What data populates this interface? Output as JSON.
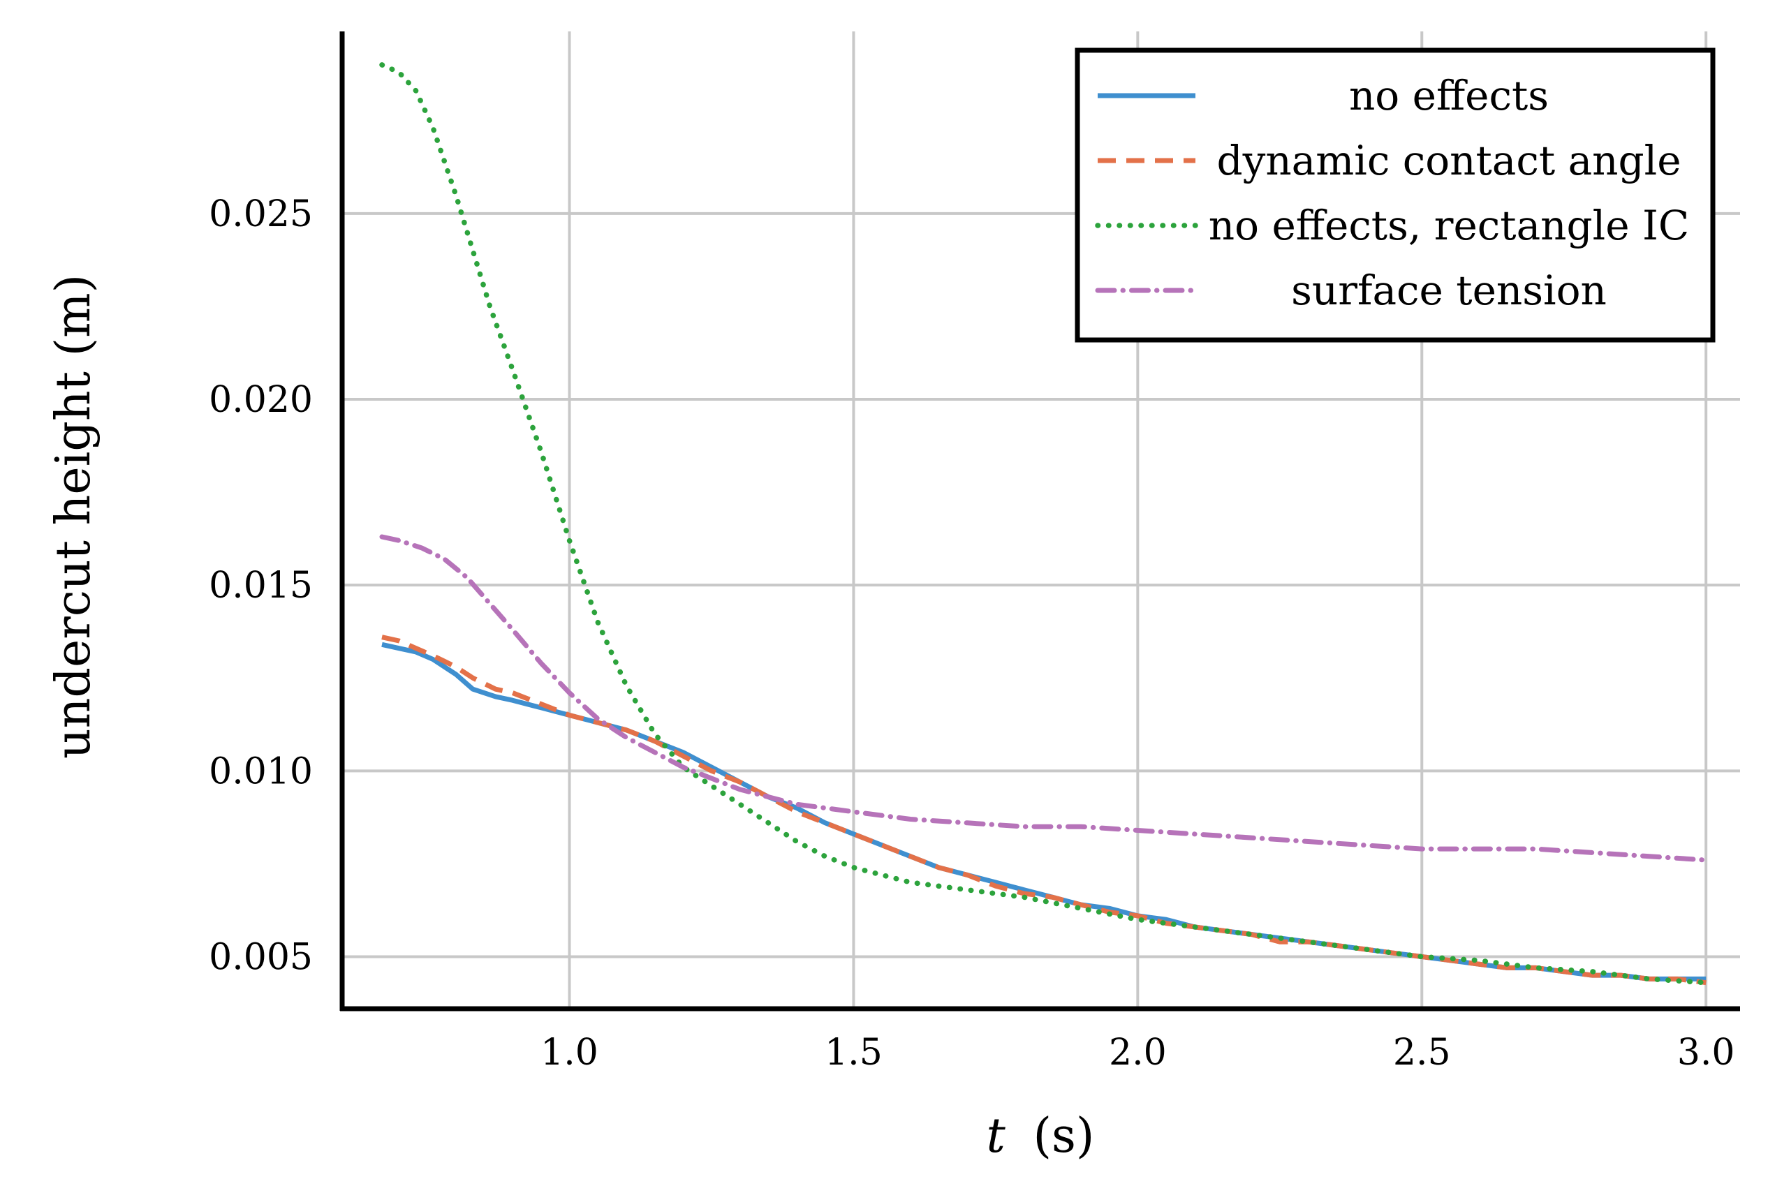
{
  "chart_data": {
    "type": "line",
    "title": "",
    "xlabel": "t (s)",
    "xlabel_var": "t",
    "xlabel_unit": "(s)",
    "ylabel": "undercut height (m)",
    "xlim": [
      0.6,
      3.06
    ],
    "ylim": [
      0.0036,
      0.0299
    ],
    "xticks": [
      1.0,
      1.5,
      2.0,
      2.5,
      3.0
    ],
    "xtick_labels": [
      "1.0",
      "1.5",
      "2.0",
      "2.5",
      "3.0"
    ],
    "yticks": [
      0.005,
      0.01,
      0.015,
      0.02,
      0.025
    ],
    "ytick_labels": [
      "0.005",
      "0.010",
      "0.015",
      "0.020",
      "0.025"
    ],
    "grid": true,
    "legend_position": "top-right",
    "series": [
      {
        "name": "no effects",
        "color": "#3f8fcf",
        "style": "solid",
        "x": [
          0.67,
          0.7,
          0.73,
          0.76,
          0.8,
          0.83,
          0.87,
          0.9,
          0.95,
          1.0,
          1.05,
          1.1,
          1.15,
          1.2,
          1.25,
          1.3,
          1.35,
          1.4,
          1.45,
          1.5,
          1.55,
          1.6,
          1.65,
          1.7,
          1.75,
          1.8,
          1.85,
          1.9,
          1.95,
          2.0,
          2.05,
          2.1,
          2.15,
          2.2,
          2.25,
          2.3,
          2.35,
          2.4,
          2.45,
          2.5,
          2.55,
          2.6,
          2.65,
          2.7,
          2.75,
          2.8,
          2.85,
          2.9,
          2.95,
          3.0
        ],
        "y": [
          0.0134,
          0.0133,
          0.0132,
          0.013,
          0.0126,
          0.0122,
          0.012,
          0.0119,
          0.0117,
          0.0115,
          0.0113,
          0.0111,
          0.0108,
          0.0105,
          0.0101,
          0.0097,
          0.0093,
          0.009,
          0.0086,
          0.0083,
          0.008,
          0.0077,
          0.0074,
          0.0072,
          0.007,
          0.0068,
          0.0066,
          0.0064,
          0.0063,
          0.0061,
          0.006,
          0.0058,
          0.0057,
          0.0056,
          0.0055,
          0.0054,
          0.0053,
          0.0052,
          0.0051,
          0.005,
          0.0049,
          0.0048,
          0.0047,
          0.0047,
          0.0046,
          0.0045,
          0.0045,
          0.0044,
          0.0044,
          0.0044
        ]
      },
      {
        "name": "dynamic contact angle",
        "color": "#e37149",
        "style": "dashed",
        "x": [
          0.67,
          0.7,
          0.73,
          0.76,
          0.8,
          0.83,
          0.87,
          0.9,
          0.95,
          1.0,
          1.05,
          1.1,
          1.15,
          1.2,
          1.25,
          1.3,
          1.35,
          1.4,
          1.45,
          1.5,
          1.55,
          1.6,
          1.65,
          1.7,
          1.75,
          1.8,
          1.85,
          1.9,
          1.95,
          2.0,
          2.05,
          2.1,
          2.15,
          2.2,
          2.25,
          2.3,
          2.35,
          2.4,
          2.45,
          2.5,
          2.55,
          2.6,
          2.65,
          2.7,
          2.75,
          2.8,
          2.85,
          2.9,
          2.95,
          3.0
        ],
        "y": [
          0.0136,
          0.0135,
          0.0133,
          0.0131,
          0.0128,
          0.0125,
          0.0122,
          0.0121,
          0.0118,
          0.0115,
          0.0113,
          0.0111,
          0.0108,
          0.0104,
          0.01,
          0.0097,
          0.0093,
          0.0089,
          0.0086,
          0.0083,
          0.008,
          0.0077,
          0.0074,
          0.0072,
          0.0069,
          0.0067,
          0.0066,
          0.0064,
          0.0062,
          0.0061,
          0.0059,
          0.0058,
          0.0057,
          0.0056,
          0.0054,
          0.0054,
          0.0053,
          0.0052,
          0.0051,
          0.005,
          0.0049,
          0.0048,
          0.0047,
          0.0047,
          0.0046,
          0.0045,
          0.0045,
          0.0044,
          0.0044,
          0.0043
        ]
      },
      {
        "name": "no effects, rectangle IC",
        "color": "#2ca33c",
        "style": "dotted",
        "x": [
          0.67,
          0.7,
          0.73,
          0.76,
          0.8,
          0.83,
          0.86,
          0.9,
          0.95,
          1.0,
          1.05,
          1.1,
          1.15,
          1.2,
          1.25,
          1.3,
          1.35,
          1.4,
          1.45,
          1.5,
          1.55,
          1.6,
          1.7,
          1.8,
          1.9,
          2.0,
          2.1,
          2.2,
          2.3,
          2.4,
          2.5,
          2.6,
          2.7,
          2.8,
          2.9,
          3.0
        ],
        "y": [
          0.029,
          0.0288,
          0.0283,
          0.0273,
          0.0255,
          0.024,
          0.0225,
          0.0208,
          0.0186,
          0.0162,
          0.014,
          0.0123,
          0.011,
          0.0101,
          0.0096,
          0.0091,
          0.0086,
          0.0081,
          0.0077,
          0.0074,
          0.0072,
          0.007,
          0.0068,
          0.0066,
          0.0063,
          0.006,
          0.0058,
          0.0056,
          0.0054,
          0.0052,
          0.005,
          0.0049,
          0.0047,
          0.0046,
          0.0044,
          0.0043
        ]
      },
      {
        "name": "surface tension",
        "color": "#b673b9",
        "style": "dashdot",
        "x": [
          0.67,
          0.7,
          0.74,
          0.78,
          0.82,
          0.86,
          0.9,
          0.95,
          1.0,
          1.05,
          1.1,
          1.15,
          1.2,
          1.25,
          1.3,
          1.35,
          1.4,
          1.45,
          1.5,
          1.6,
          1.7,
          1.8,
          1.9,
          2.0,
          2.1,
          2.2,
          2.3,
          2.4,
          2.5,
          2.6,
          2.7,
          2.8,
          2.9,
          3.0
        ],
        "y": [
          0.0163,
          0.0162,
          0.016,
          0.0157,
          0.0152,
          0.0145,
          0.0138,
          0.0129,
          0.0121,
          0.0114,
          0.0109,
          0.0105,
          0.0101,
          0.0098,
          0.0095,
          0.0093,
          0.0091,
          0.009,
          0.0089,
          0.0087,
          0.0086,
          0.0085,
          0.0085,
          0.0084,
          0.0083,
          0.0082,
          0.0081,
          0.008,
          0.0079,
          0.0079,
          0.0079,
          0.0078,
          0.0077,
          0.0076
        ]
      }
    ]
  }
}
